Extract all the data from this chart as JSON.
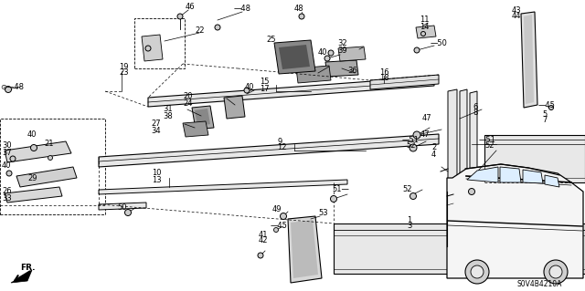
{
  "bg_color": "#ffffff",
  "part_code": "S0V4B4210A",
  "fig_width": 6.4,
  "fig_height": 3.19,
  "dpi": 100
}
